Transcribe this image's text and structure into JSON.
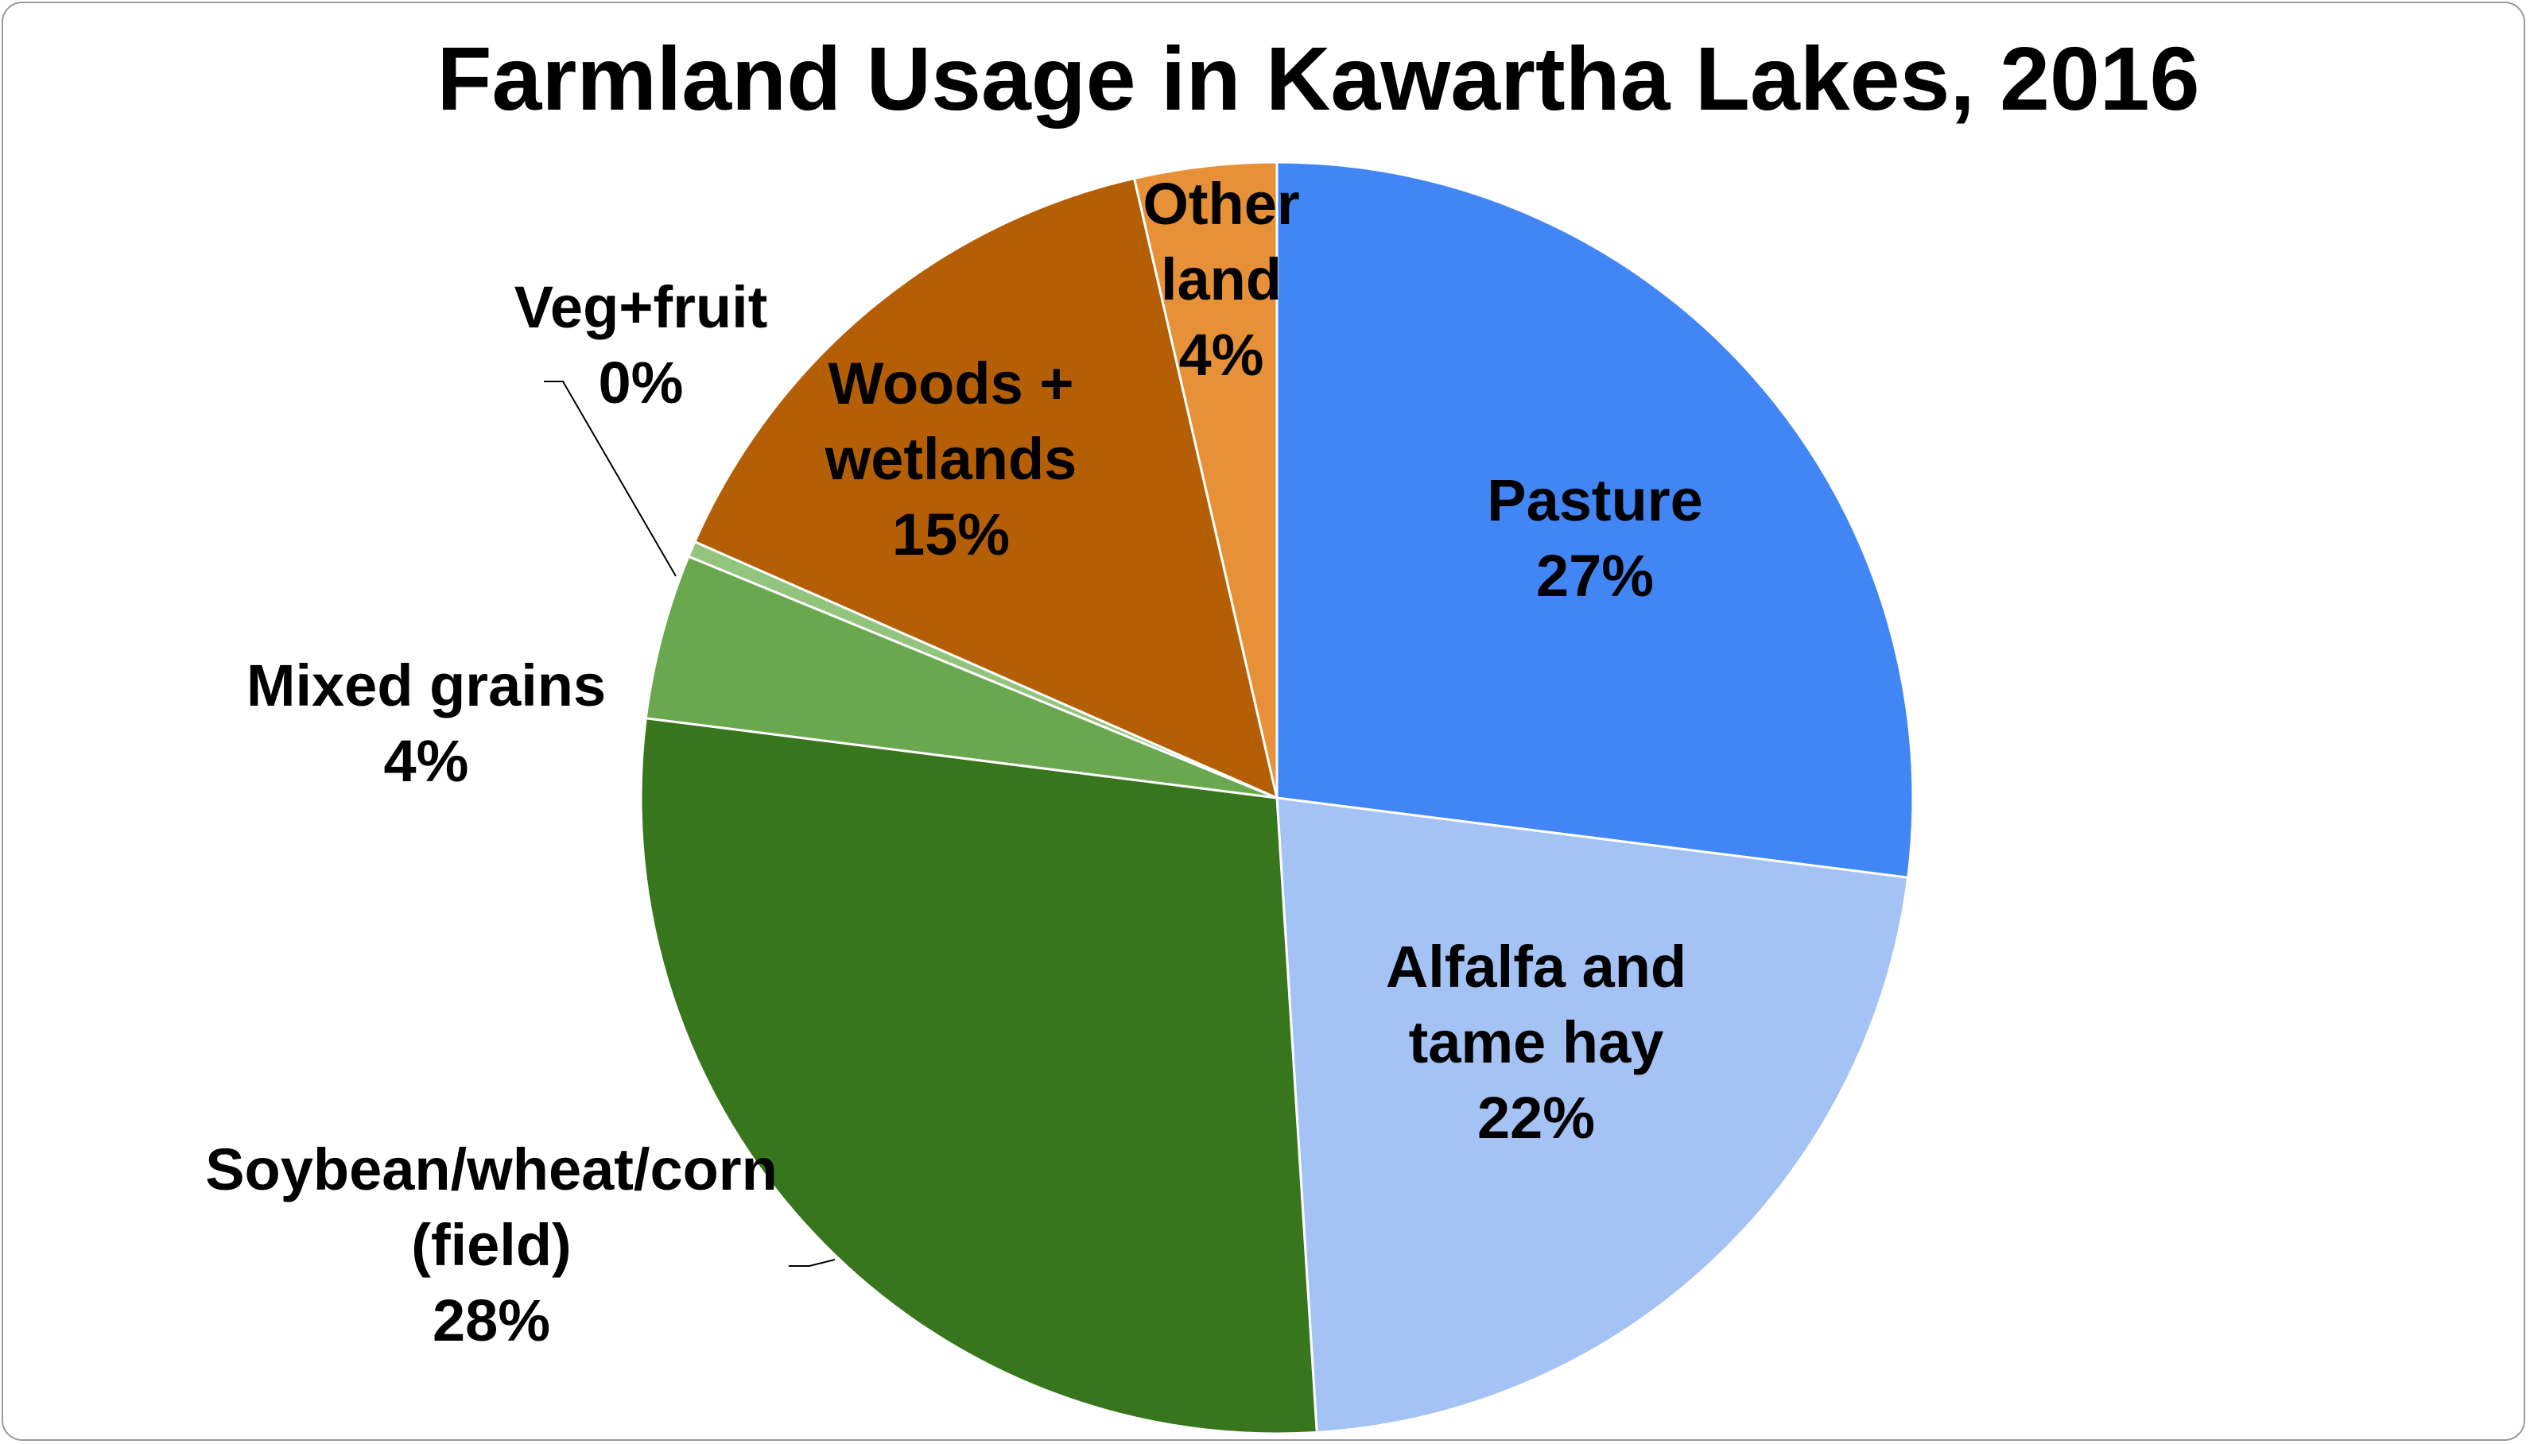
{
  "chart_data": {
    "type": "pie",
    "title": "Farmland Usage in Kawartha Lakes, 2016",
    "start_angle_deg": 0,
    "direction": "clockwise",
    "legend": "none",
    "slices": [
      {
        "label": [
          "Pasture"
        ],
        "value": 27.0,
        "value_label": "27%",
        "color": "#4285f4"
      },
      {
        "label": [
          "Alfalfa and",
          "tame hay"
        ],
        "value": 22.0,
        "value_label": "22%",
        "color": "#a4c2f4"
      },
      {
        "label": [
          "Soybean/wheat/corn",
          "(field)"
        ],
        "value": 28.0,
        "value_label": "28%",
        "color": "#38761d"
      },
      {
        "label": [
          "Mixed grains"
        ],
        "value": 4.2,
        "value_label": "4%",
        "color": "#6aa84f"
      },
      {
        "label": [
          "Veg+fruit"
        ],
        "value": 0.4,
        "value_label": "0%",
        "color": "#93c47d"
      },
      {
        "label": [
          "Woods +",
          "wetlands"
        ],
        "value": 14.8,
        "value_label": "15%",
        "color": "#b45f06"
      },
      {
        "label": [
          "Other",
          "land"
        ],
        "value": 3.6,
        "value_label": "4%",
        "color": "#e69138"
      }
    ]
  }
}
